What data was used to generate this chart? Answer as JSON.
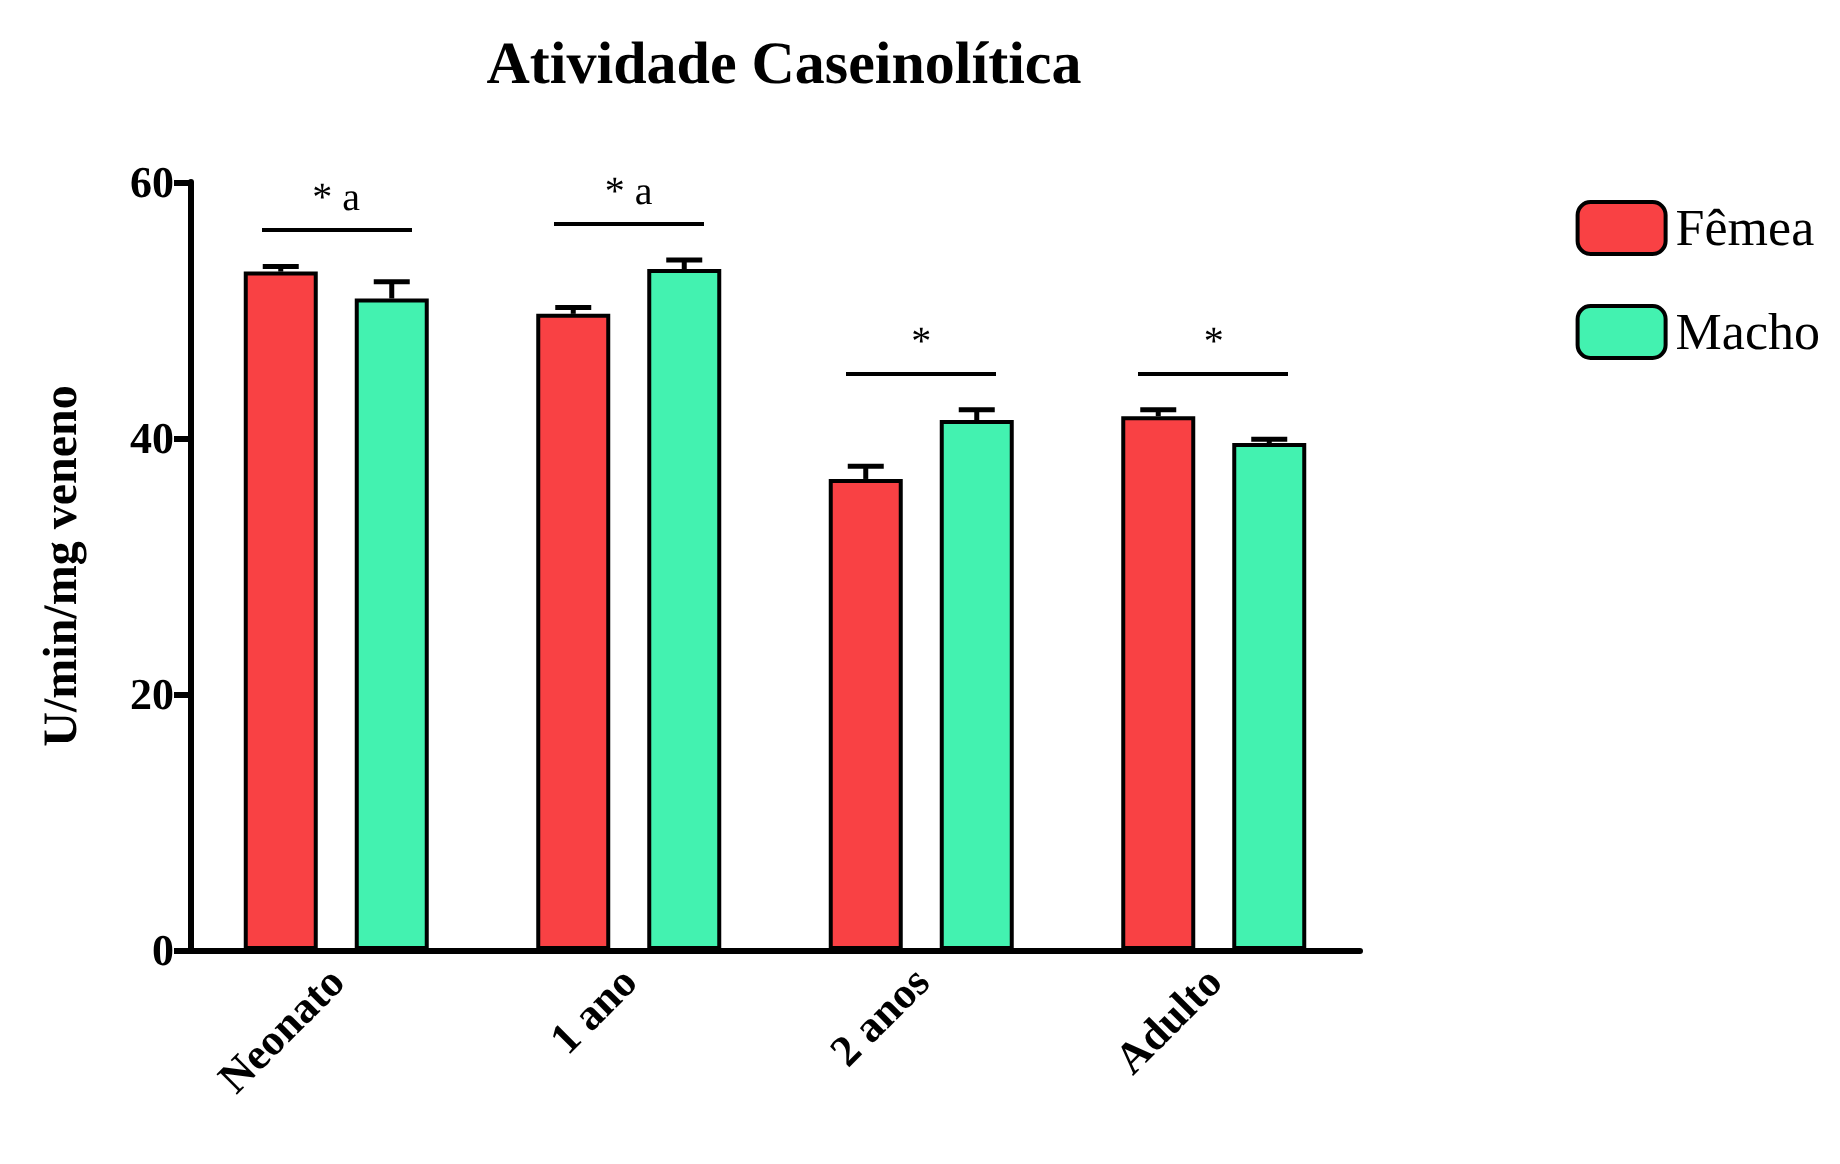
{
  "chart_data": {
    "type": "bar",
    "title": "Atividade Caseinolítica",
    "ylabel": "U/min/mg veneno",
    "categories": [
      "Neonato",
      "1 ano",
      "2 anos",
      "Adulto"
    ],
    "series": [
      {
        "name": "Fêmea",
        "color": "#f94144",
        "values": [
          53.0,
          49.7,
          36.8,
          41.7
        ],
        "errors": [
          [
            53.0,
            53.4
          ],
          [
            49.7,
            50.2
          ],
          [
            36.8,
            37.8
          ],
          [
            41.7,
            42.2
          ]
        ]
      },
      {
        "name": "Macho",
        "color": "#43f2b0",
        "values": [
          50.9,
          53.2,
          41.4,
          39.6
        ],
        "errors": [
          [
            50.9,
            52.2
          ],
          [
            53.2,
            53.9
          ],
          [
            41.4,
            42.2
          ],
          [
            39.6,
            39.9
          ]
        ]
      }
    ],
    "annotations": [
      "* a",
      "* a",
      "*",
      "*"
    ],
    "ylim": [
      0,
      60
    ],
    "yticks": [
      0,
      20,
      40,
      60
    ],
    "grid": false,
    "legend": "top right"
  }
}
